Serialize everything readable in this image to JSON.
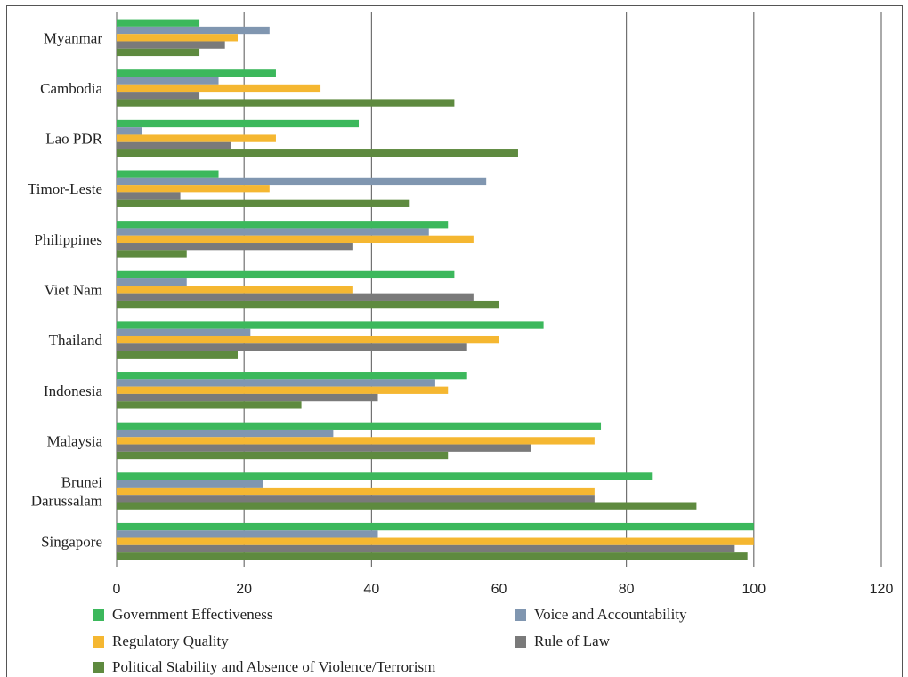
{
  "chart_data": {
    "type": "bar",
    "orientation": "horizontal",
    "categories": [
      "Myanmar",
      "Cambodia",
      "Lao PDR",
      "Timor-Leste",
      "Philippines",
      "Viet Nam",
      "Thailand",
      "Indonesia",
      "Malaysia",
      "Brunei Darussalam",
      "Singapore"
    ],
    "category_lines": [
      [
        "Myanmar"
      ],
      [
        "Cambodia"
      ],
      [
        "Lao PDR"
      ],
      [
        "Timor-Leste"
      ],
      [
        "Philippines"
      ],
      [
        "Viet Nam"
      ],
      [
        "Thailand"
      ],
      [
        "Indonesia"
      ],
      [
        "Malaysia"
      ],
      [
        "Brunei",
        "Darussalam"
      ],
      [
        "Singapore"
      ]
    ],
    "series": [
      {
        "name": "Government Effectiveness",
        "color": "#3cb85c",
        "values": [
          13,
          25,
          38,
          16,
          52,
          53,
          67,
          55,
          76,
          84,
          100
        ]
      },
      {
        "name": "Voice and Accountability",
        "color": "#8096b0",
        "values": [
          24,
          16,
          4,
          58,
          49,
          11,
          21,
          50,
          34,
          23,
          41
        ]
      },
      {
        "name": "Regulatory Quality",
        "color": "#f5b731",
        "values": [
          19,
          32,
          25,
          24,
          56,
          37,
          60,
          52,
          75,
          75,
          100
        ]
      },
      {
        "name": "Rule of Law",
        "color": "#7a7a7a",
        "values": [
          17,
          13,
          18,
          10,
          37,
          56,
          55,
          41,
          65,
          75,
          97
        ]
      },
      {
        "name": "Political Stability and Absence of Violence/Terrorism",
        "color": "#5e8a3f",
        "values": [
          13,
          53,
          63,
          46,
          11,
          60,
          19,
          29,
          52,
          91,
          99
        ]
      }
    ],
    "xlim": [
      0,
      120
    ],
    "xticks": [
      "0",
      "20",
      "40",
      "60",
      "80",
      "100",
      "120"
    ],
    "grid": "vertical",
    "legend_position": "bottom"
  }
}
